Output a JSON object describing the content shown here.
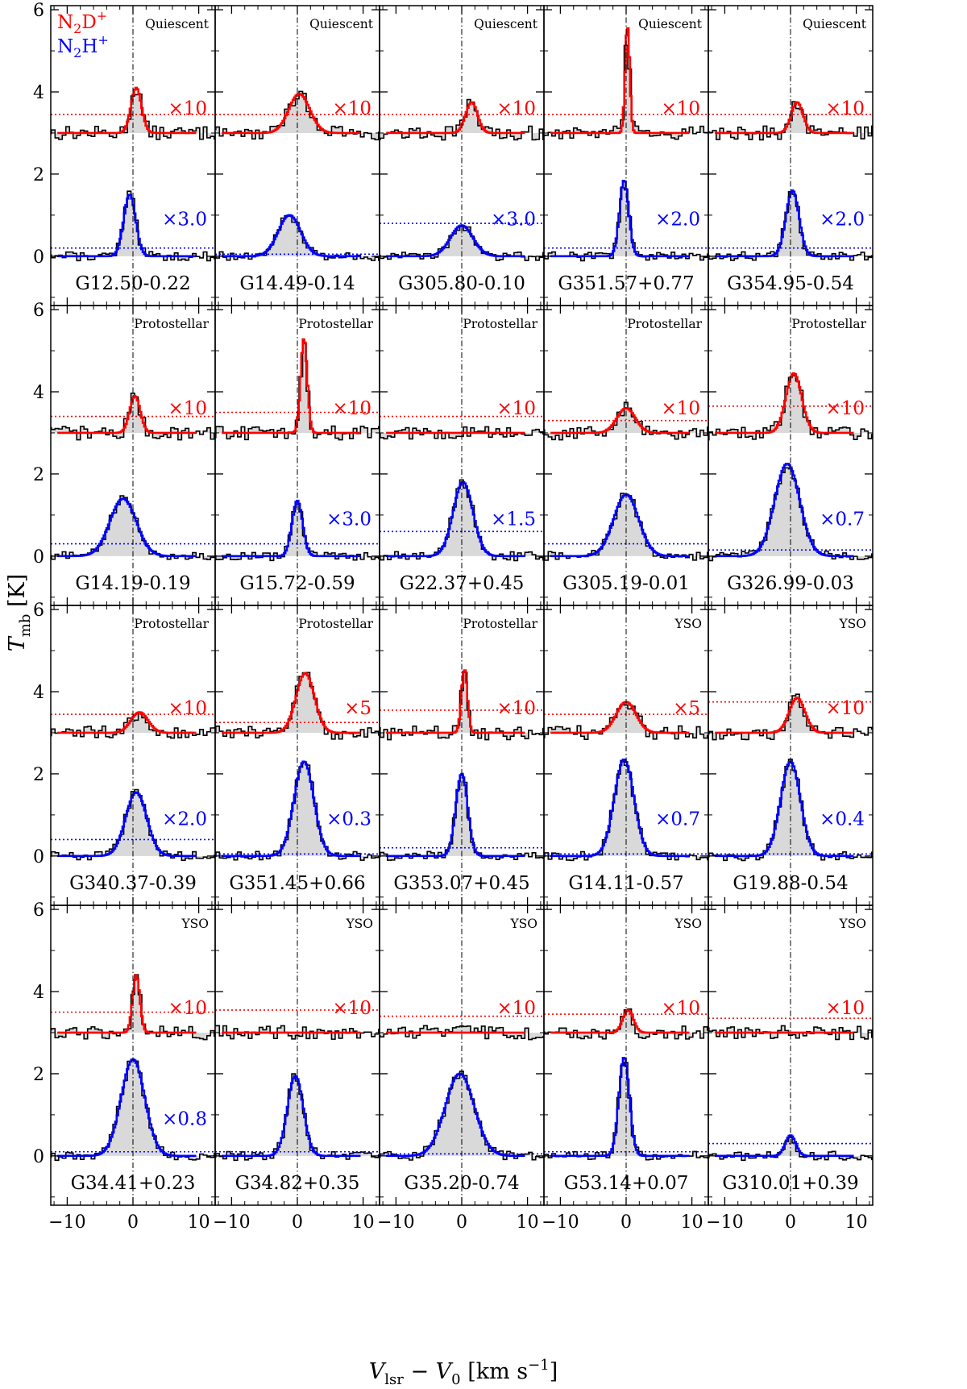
{
  "chart_data": {
    "type": "line",
    "layout": "grid of 20 spectral panels, 4 rows x 5 columns, shared axes",
    "xlabel_parts": {
      "v": "V",
      "v_sub": "lsr",
      "minus": " − ",
      "v0": "V",
      "v0_sub": "0",
      "unit": " [km s",
      "unit_sup": "−1",
      "unit_end": "]"
    },
    "ylabel_parts": {
      "t": "T",
      "t_sub": "mb",
      "unit": " [K]"
    },
    "xlim": [
      -12.5,
      12.5
    ],
    "ylim": [
      -1.2,
      6.1
    ],
    "xticks": [
      -10,
      0,
      10
    ],
    "yticks": [
      0,
      2,
      4,
      6
    ],
    "grid": false,
    "legend": {
      "placement": "top-left of first panel",
      "entries": [
        {
          "base": "N",
          "sub": "2",
          "rest": "D",
          "sup": "+",
          "color": "#ff0000"
        },
        {
          "base": "N",
          "sub": "2",
          "rest": "H",
          "sup": "+",
          "color": "#0000ff"
        }
      ]
    },
    "colors": {
      "n2dp": "#ff0000",
      "n2hp": "#0000ff",
      "observed": "#000000",
      "fill": "#d9d9d9"
    },
    "offsets": {
      "n2dp_baseline": 3.0,
      "n2hp_baseline": 0.0
    },
    "panels": [
      {
        "name": "G12.50-0.22",
        "class": "Quiescent",
        "n2dp": {
          "scale": "×10",
          "peak": 1.1,
          "center": 0.5,
          "width": 0.8,
          "line": 3.45
        },
        "n2hp": {
          "scale": "×3.0",
          "peak": 1.5,
          "center": -0.5,
          "width": 0.9,
          "line": 0.2
        }
      },
      {
        "name": "G14.49-0.14",
        "class": "Quiescent",
        "n2dp": {
          "scale": "×10",
          "peak": 0.95,
          "center": 0.3,
          "width": 1.6,
          "line": 3.45
        },
        "n2hp": {
          "scale": "",
          "peak": 1.0,
          "center": -1.2,
          "width": 1.7,
          "line": 0.05
        }
      },
      {
        "name": "G305.80-0.10",
        "class": "Quiescent",
        "n2dp": {
          "scale": "×10",
          "peak": 0.75,
          "center": 1.5,
          "width": 0.9,
          "line": 3.45
        },
        "n2hp": {
          "scale": "×3.0",
          "peak": 0.75,
          "center": 0.0,
          "width": 1.7,
          "line": 0.8
        }
      },
      {
        "name": "G351.57+0.77",
        "class": "Quiescent",
        "n2dp": {
          "scale": "×10",
          "peak": 2.6,
          "center": 0.2,
          "width": 0.35,
          "line": 3.45
        },
        "n2hp": {
          "scale": "×2.0",
          "peak": 1.85,
          "center": -0.3,
          "width": 0.7,
          "line": 0.2
        }
      },
      {
        "name": "G354.95-0.54",
        "class": "Quiescent",
        "n2dp": {
          "scale": "×10",
          "peak": 0.75,
          "center": 1.0,
          "width": 0.9,
          "line": 3.45
        },
        "n2hp": {
          "scale": "×2.0",
          "peak": 1.6,
          "center": 0.3,
          "width": 1.0,
          "line": 0.2
        }
      },
      {
        "name": "G14.19-0.19",
        "class": "Protostellar",
        "n2dp": {
          "scale": "×10",
          "peak": 0.9,
          "center": 0.3,
          "width": 0.8,
          "line": 3.4
        },
        "n2hp": {
          "scale": "",
          "peak": 1.4,
          "center": -1.5,
          "width": 2.0,
          "line": 0.3
        }
      },
      {
        "name": "G15.72-0.59",
        "class": "Protostellar",
        "n2dp": {
          "scale": "×10",
          "peak": 2.3,
          "center": 1.0,
          "width": 0.5,
          "line": 3.5
        },
        "n2hp": {
          "scale": "×3.0",
          "peak": 1.35,
          "center": 0.0,
          "width": 0.8,
          "line": 0.3
        }
      },
      {
        "name": "G22.37+0.45",
        "class": "Protostellar",
        "n2dp": {
          "scale": "×10",
          "peak": 0.0,
          "center": 0.0,
          "width": 1.0,
          "line": 3.4
        },
        "n2hp": {
          "scale": "×1.5",
          "peak": 1.8,
          "center": 0.2,
          "width": 1.5,
          "line": 0.6
        }
      },
      {
        "name": "G305.19-0.01",
        "class": "Protostellar",
        "n2dp": {
          "scale": "×10",
          "peak": 0.6,
          "center": 0.0,
          "width": 1.4,
          "line": 3.3
        },
        "n2hp": {
          "scale": "",
          "peak": 1.5,
          "center": 0.0,
          "width": 1.9,
          "line": 0.3
        }
      },
      {
        "name": "G326.99-0.03",
        "class": "Protostellar",
        "n2dp": {
          "scale": "×10",
          "peak": 1.45,
          "center": 0.5,
          "width": 1.2,
          "line": 3.65
        },
        "n2hp": {
          "scale": "×0.7",
          "peak": 2.25,
          "center": -0.5,
          "width": 1.9,
          "line": 0.15
        }
      },
      {
        "name": "G340.37-0.39",
        "class": "Protostellar",
        "n2dp": {
          "scale": "×10",
          "peak": 0.5,
          "center": 1.0,
          "width": 1.3,
          "line": 3.45
        },
        "n2hp": {
          "scale": "×2.0",
          "peak": 1.55,
          "center": 0.5,
          "width": 1.6,
          "line": 0.4
        }
      },
      {
        "name": "G351.45+0.66",
        "class": "Protostellar",
        "n2dp": {
          "scale": "×5",
          "peak": 1.45,
          "center": 1.2,
          "width": 1.4,
          "line": 3.25
        },
        "n2hp": {
          "scale": "×0.3",
          "peak": 2.3,
          "center": 1.0,
          "width": 1.5,
          "line": 0.05
        }
      },
      {
        "name": "G353.07+0.45",
        "class": "Protostellar",
        "n2dp": {
          "scale": "×10",
          "peak": 1.55,
          "center": 0.4,
          "width": 0.45,
          "line": 3.55
        },
        "n2hp": {
          "scale": "",
          "peak": 2.0,
          "center": 0.0,
          "width": 0.9,
          "line": 0.2
        }
      },
      {
        "name": "G14.11-0.57",
        "class": "YSO",
        "n2dp": {
          "scale": "×5",
          "peak": 0.75,
          "center": 0.0,
          "width": 1.5,
          "line": 3.45
        },
        "n2hp": {
          "scale": "×0.7",
          "peak": 2.35,
          "center": -0.3,
          "width": 1.5,
          "line": 0.05
        }
      },
      {
        "name": "G19.88-0.54",
        "class": "YSO",
        "n2dp": {
          "scale": "×10",
          "peak": 0.85,
          "center": 1.0,
          "width": 1.2,
          "line": 3.75
        },
        "n2hp": {
          "scale": "×0.4",
          "peak": 2.3,
          "center": 0.0,
          "width": 1.5,
          "line": 0.05
        }
      },
      {
        "name": "G34.41+0.23",
        "class": "YSO",
        "n2dp": {
          "scale": "×10",
          "peak": 1.4,
          "center": 0.5,
          "width": 0.55,
          "line": 3.5
        },
        "n2hp": {
          "scale": "×0.8",
          "peak": 2.35,
          "center": 0.0,
          "width": 1.8,
          "line": 0.1
        }
      },
      {
        "name": "G34.82+0.35",
        "class": "YSO",
        "n2dp": {
          "scale": "×10",
          "peak": 0.0,
          "center": 0.0,
          "width": 1.0,
          "line": 3.55
        },
        "n2hp": {
          "scale": "",
          "peak": 1.95,
          "center": -0.3,
          "width": 1.2,
          "line": 0.1
        }
      },
      {
        "name": "G35.20-0.74",
        "class": "YSO",
        "n2dp": {
          "scale": "×10",
          "peak": 0.0,
          "center": 0.0,
          "width": 1.0,
          "line": 3.4
        },
        "n2hp": {
          "scale": "",
          "peak": 2.0,
          "center": -0.3,
          "width": 2.2,
          "line": 0.05
        }
      },
      {
        "name": "G53.14+0.07",
        "class": "YSO",
        "n2dp": {
          "scale": "×10",
          "peak": 0.55,
          "center": 0.3,
          "width": 0.8,
          "line": 3.45
        },
        "n2hp": {
          "scale": "",
          "peak": 2.4,
          "center": -0.3,
          "width": 0.8,
          "line": 0.1
        }
      },
      {
        "name": "G310.01+0.39",
        "class": "YSO",
        "n2dp": {
          "scale": "×10",
          "peak": 0.0,
          "center": 0.0,
          "width": 1.0,
          "line": 3.35
        },
        "n2hp": {
          "scale": "",
          "peak": 0.5,
          "center": 0.0,
          "width": 0.8,
          "line": 0.3
        }
      }
    ]
  }
}
